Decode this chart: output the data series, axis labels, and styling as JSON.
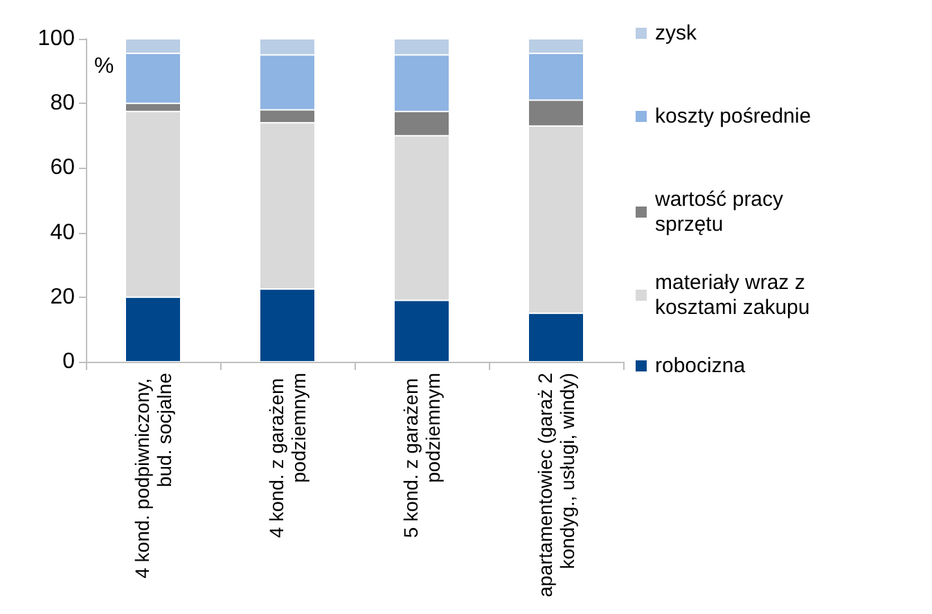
{
  "chart_data": {
    "type": "bar",
    "stacked": true,
    "categories": [
      "4 kond. podpiwniczony, bud. socjalne",
      "4 kond. z garażem podziemnym",
      "5 kond. z garażem podziemnym",
      "apartamentowiec (garaż 2 kondyg., usługi, windy)"
    ],
    "series": [
      {
        "name": "robocizna",
        "color": "#00468b",
        "values": [
          20,
          22.5,
          19,
          15
        ]
      },
      {
        "name": "materiały wraz z kosztami zakupu",
        "color": "#d9d9d9",
        "values": [
          57.5,
          51.5,
          51,
          58
        ]
      },
      {
        "name": "wartość pracy sprzętu",
        "color": "#808080",
        "values": [
          2.5,
          4,
          7.5,
          8
        ]
      },
      {
        "name": "koszty pośrednie",
        "color": "#8eb4e3",
        "values": [
          15.5,
          17,
          17.5,
          14.5
        ]
      },
      {
        "name": "zysk",
        "color": "#b9cde5",
        "values": [
          4.5,
          5,
          5,
          4.5
        ]
      }
    ],
    "ylim": [
      0,
      100
    ],
    "yticks": [
      0,
      20,
      40,
      60,
      80,
      100
    ],
    "grid": false,
    "legend": "right",
    "annotations": [
      "%"
    ]
  }
}
